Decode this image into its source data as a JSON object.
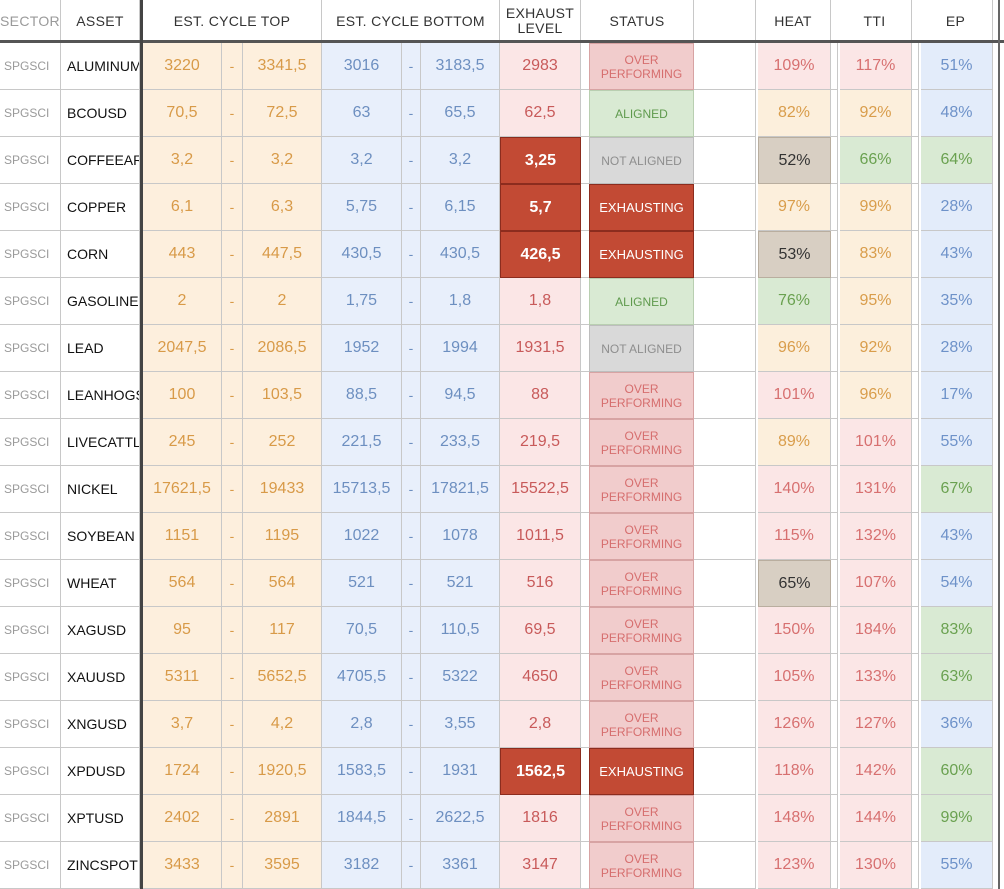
{
  "headers": {
    "sector": "SECTOR",
    "asset": "ASSET",
    "cycle_top": "EST. CYCLE TOP",
    "cycle_bottom": "EST. CYCLE BOTTOM",
    "exhaust_line1": "EXHAUST",
    "exhaust_line2": "LEVEL",
    "status": "STATUS",
    "heat": "HEAT",
    "tti": "TTI",
    "ep": "EP"
  },
  "dash": "-",
  "rows": [
    {
      "sector": "SPGSCI",
      "asset": "ALUMINUM",
      "top_lo": "3220",
      "top_hi": "3341,5",
      "bot_lo": "3016",
      "bot_hi": "3183,5",
      "exhaust": "2983",
      "exhaust_hot": false,
      "status": "OVER PERFORMING",
      "status_type": "over",
      "heat": "109%",
      "heat_c": "red",
      "tti": "117%",
      "tti_c": "red",
      "ep": "51%",
      "ep_c": "blue"
    },
    {
      "sector": "SPGSCI",
      "asset": "BCOUSD",
      "top_lo": "70,5",
      "top_hi": "72,5",
      "bot_lo": "63",
      "bot_hi": "65,5",
      "exhaust": "62,5",
      "exhaust_hot": false,
      "status": "ALIGNED",
      "status_type": "aligned",
      "heat": "82%",
      "heat_c": "orange",
      "tti": "92%",
      "tti_c": "orange",
      "ep": "48%",
      "ep_c": "blue"
    },
    {
      "sector": "SPGSCI",
      "asset": "COFFEEAR",
      "top_lo": "3,2",
      "top_hi": "3,2",
      "bot_lo": "3,2",
      "bot_hi": "3,2",
      "exhaust": "3,25",
      "exhaust_hot": true,
      "status": "NOT ALIGNED",
      "status_type": "not",
      "heat": "52%",
      "heat_c": "grey",
      "tti": "66%",
      "tti_c": "green",
      "ep": "64%",
      "ep_c": "green"
    },
    {
      "sector": "SPGSCI",
      "asset": "COPPER",
      "top_lo": "6,1",
      "top_hi": "6,3",
      "bot_lo": "5,75",
      "bot_hi": "6,15",
      "exhaust": "5,7",
      "exhaust_hot": true,
      "status": "EXHAUSTING",
      "status_type": "exh",
      "heat": "97%",
      "heat_c": "orange",
      "tti": "99%",
      "tti_c": "orange",
      "ep": "28%",
      "ep_c": "blue"
    },
    {
      "sector": "SPGSCI",
      "asset": "CORN",
      "top_lo": "443",
      "top_hi": "447,5",
      "bot_lo": "430,5",
      "bot_hi": "430,5",
      "exhaust": "426,5",
      "exhaust_hot": true,
      "status": "EXHAUSTING",
      "status_type": "exh",
      "heat": "53%",
      "heat_c": "grey",
      "tti": "83%",
      "tti_c": "orange",
      "ep": "43%",
      "ep_c": "blue"
    },
    {
      "sector": "SPGSCI",
      "asset": "GASOLINE",
      "top_lo": "2",
      "top_hi": "2",
      "bot_lo": "1,75",
      "bot_hi": "1,8",
      "exhaust": "1,8",
      "exhaust_hot": false,
      "status": "ALIGNED",
      "status_type": "aligned",
      "heat": "76%",
      "heat_c": "green",
      "tti": "95%",
      "tti_c": "orange",
      "ep": "35%",
      "ep_c": "blue"
    },
    {
      "sector": "SPGSCI",
      "asset": "LEAD",
      "top_lo": "2047,5",
      "top_hi": "2086,5",
      "bot_lo": "1952",
      "bot_hi": "1994",
      "exhaust": "1931,5",
      "exhaust_hot": false,
      "status": "NOT ALIGNED",
      "status_type": "not",
      "heat": "96%",
      "heat_c": "orange",
      "tti": "92%",
      "tti_c": "orange",
      "ep": "28%",
      "ep_c": "blue"
    },
    {
      "sector": "SPGSCI",
      "asset": "LEANHOGS",
      "top_lo": "100",
      "top_hi": "103,5",
      "bot_lo": "88,5",
      "bot_hi": "94,5",
      "exhaust": "88",
      "exhaust_hot": false,
      "status": "OVER PERFORMING",
      "status_type": "over",
      "heat": "101%",
      "heat_c": "red",
      "tti": "96%",
      "tti_c": "orange",
      "ep": "17%",
      "ep_c": "blue"
    },
    {
      "sector": "SPGSCI",
      "asset": "LIVECATTLE",
      "top_lo": "245",
      "top_hi": "252",
      "bot_lo": "221,5",
      "bot_hi": "233,5",
      "exhaust": "219,5",
      "exhaust_hot": false,
      "status": "OVER PERFORMING",
      "status_type": "over",
      "heat": "89%",
      "heat_c": "orange",
      "tti": "101%",
      "tti_c": "red",
      "ep": "55%",
      "ep_c": "blue"
    },
    {
      "sector": "SPGSCI",
      "asset": "NICKEL",
      "top_lo": "17621,5",
      "top_hi": "19433",
      "bot_lo": "15713,5",
      "bot_hi": "17821,5",
      "exhaust": "15522,5",
      "exhaust_hot": false,
      "status": "OVER PERFORMING",
      "status_type": "over",
      "heat": "140%",
      "heat_c": "red",
      "tti": "131%",
      "tti_c": "red",
      "ep": "67%",
      "ep_c": "green"
    },
    {
      "sector": "SPGSCI",
      "asset": "SOYBEAN",
      "top_lo": "1151",
      "top_hi": "1195",
      "bot_lo": "1022",
      "bot_hi": "1078",
      "exhaust": "1011,5",
      "exhaust_hot": false,
      "status": "OVER PERFORMING",
      "status_type": "over",
      "heat": "115%",
      "heat_c": "red",
      "tti": "132%",
      "tti_c": "red",
      "ep": "43%",
      "ep_c": "blue"
    },
    {
      "sector": "SPGSCI",
      "asset": "WHEAT",
      "top_lo": "564",
      "top_hi": "564",
      "bot_lo": "521",
      "bot_hi": "521",
      "exhaust": "516",
      "exhaust_hot": false,
      "status": "OVER PERFORMING",
      "status_type": "over",
      "heat": "65%",
      "heat_c": "grey",
      "tti": "107%",
      "tti_c": "red",
      "ep": "54%",
      "ep_c": "blue"
    },
    {
      "sector": "SPGSCI",
      "asset": "XAGUSD",
      "top_lo": "95",
      "top_hi": "117",
      "bot_lo": "70,5",
      "bot_hi": "110,5",
      "exhaust": "69,5",
      "exhaust_hot": false,
      "status": "OVER PERFORMING",
      "status_type": "over",
      "heat": "150%",
      "heat_c": "red",
      "tti": "184%",
      "tti_c": "red",
      "ep": "83%",
      "ep_c": "green"
    },
    {
      "sector": "SPGSCI",
      "asset": "XAUUSD",
      "top_lo": "5311",
      "top_hi": "5652,5",
      "bot_lo": "4705,5",
      "bot_hi": "5322",
      "exhaust": "4650",
      "exhaust_hot": false,
      "status": "OVER PERFORMING",
      "status_type": "over",
      "heat": "105%",
      "heat_c": "red",
      "tti": "133%",
      "tti_c": "red",
      "ep": "63%",
      "ep_c": "green"
    },
    {
      "sector": "SPGSCI",
      "asset": "XNGUSD",
      "top_lo": "3,7",
      "top_hi": "4,2",
      "bot_lo": "2,8",
      "bot_hi": "3,55",
      "exhaust": "2,8",
      "exhaust_hot": false,
      "status": "OVER PERFORMING",
      "status_type": "over",
      "heat": "126%",
      "heat_c": "red",
      "tti": "127%",
      "tti_c": "red",
      "ep": "36%",
      "ep_c": "blue"
    },
    {
      "sector": "SPGSCI",
      "asset": "XPDUSD",
      "top_lo": "1724",
      "top_hi": "1920,5",
      "bot_lo": "1583,5",
      "bot_hi": "1931",
      "exhaust": "1562,5",
      "exhaust_hot": true,
      "status": "EXHAUSTING",
      "status_type": "exh",
      "heat": "118%",
      "heat_c": "red",
      "tti": "142%",
      "tti_c": "red",
      "ep": "60%",
      "ep_c": "green"
    },
    {
      "sector": "SPGSCI",
      "asset": "XPTUSD",
      "top_lo": "2402",
      "top_hi": "2891",
      "bot_lo": "1844,5",
      "bot_hi": "2622,5",
      "exhaust": "1816",
      "exhaust_hot": false,
      "status": "OVER PERFORMING",
      "status_type": "over",
      "heat": "148%",
      "heat_c": "red",
      "tti": "144%",
      "tti_c": "red",
      "ep": "99%",
      "ep_c": "green"
    },
    {
      "sector": "SPGSCI",
      "asset": "ZINCSPOT",
      "top_lo": "3433",
      "top_hi": "3595",
      "bot_lo": "3182",
      "bot_hi": "3361",
      "exhaust": "3147",
      "exhaust_hot": false,
      "status": "OVER PERFORMING",
      "status_type": "over",
      "heat": "123%",
      "heat_c": "red",
      "tti": "130%",
      "tti_c": "red",
      "ep": "55%",
      "ep_c": "blue"
    }
  ]
}
